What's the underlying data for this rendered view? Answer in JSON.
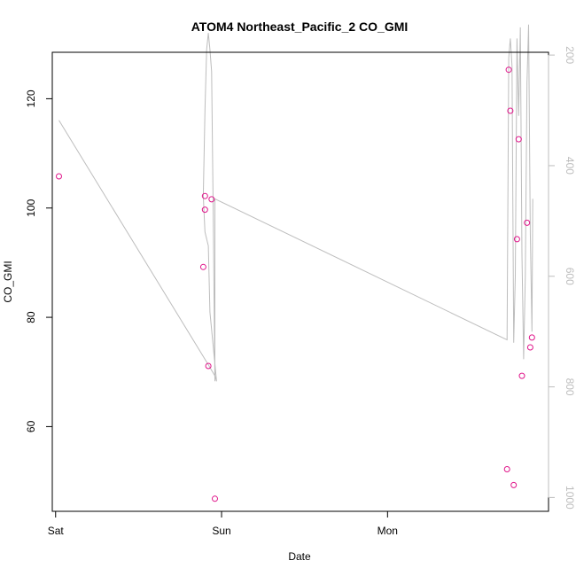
{
  "chart_data": {
    "type": "scatter",
    "title": "ATOM4 Northeast_Pacific_2 CO_GMI",
    "xlabel": "Date",
    "ylabel": "CO_GMI",
    "x_ticks": [
      "Sat",
      "Sun",
      "Mon"
    ],
    "x_tick_pos": [
      0,
      1,
      2
    ],
    "xlim": [
      -0.02,
      2.97
    ],
    "ylim": [
      44.5,
      128.5
    ],
    "y_ticks": [
      60,
      80,
      100,
      120
    ],
    "y2lim": [
      1025,
      195
    ],
    "y2_ticks": [
      200,
      400,
      600,
      800,
      1000
    ],
    "grid": false,
    "series": [
      {
        "kind": "points",
        "color": "#e0158a",
        "x": [
          0.02,
          0.89,
          0.9,
          0.9,
          0.92,
          0.94,
          0.96,
          2.72,
          2.73,
          2.74,
          2.76,
          2.78,
          2.79,
          2.81,
          2.84,
          2.86,
          2.87
        ],
        "y": [
          105.8,
          89.2,
          99.7,
          102.2,
          71.1,
          101.6,
          46.8,
          52.2,
          125.3,
          117.8,
          49.3,
          94.3,
          112.6,
          69.3,
          97.3,
          74.5,
          76.3
        ]
      },
      {
        "kind": "line",
        "axis": "right",
        "color": "#bdbdbd",
        "x": [
          0.02,
          0.92,
          0.96,
          0.97,
          0.93,
          0.92,
          0.9,
          0.89,
          0.9,
          0.91,
          0.92,
          0.93,
          0.94,
          0.95,
          0.96,
          0.96,
          2.72,
          2.73,
          2.74,
          2.75,
          2.76,
          2.77,
          2.78,
          2.79,
          2.8,
          2.81,
          2.82,
          2.83,
          2.84,
          2.85,
          2.86,
          2.87,
          2.875
        ],
        "y": [
          318,
          760,
          780,
          790,
          665,
          545,
          520,
          455,
          300,
          190,
          160,
          190,
          230,
          500,
          790,
          460,
          715,
          205,
          170,
          220,
          720,
          600,
          170,
          310,
          150,
          560,
          750,
          600,
          250,
          145,
          520,
          700,
          460
        ]
      }
    ]
  }
}
